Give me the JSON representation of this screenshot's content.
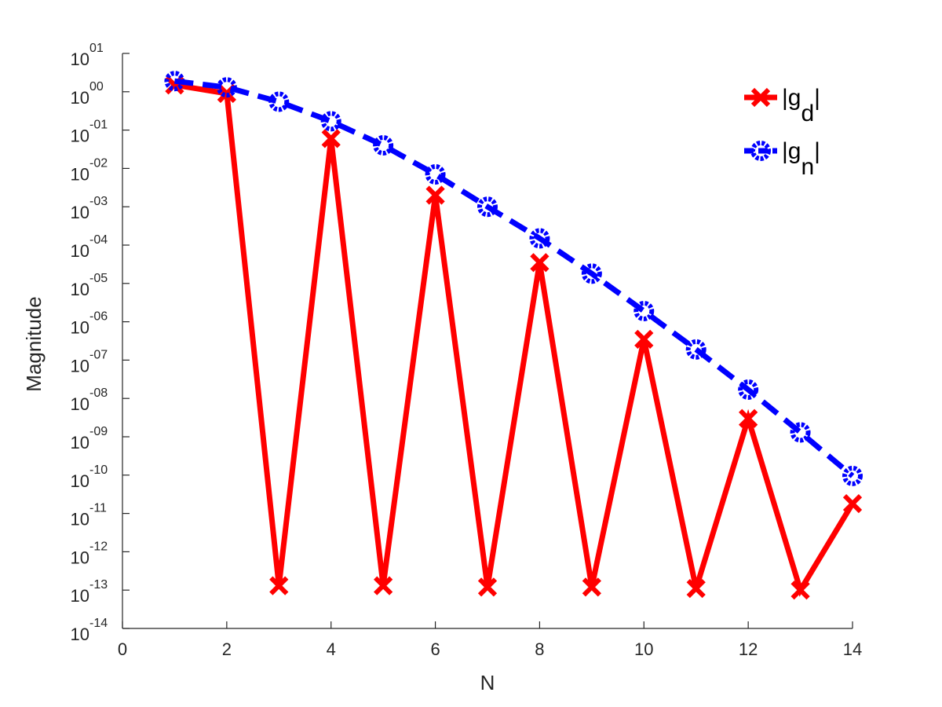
{
  "chart_data": {
    "type": "line",
    "xlabel": "N",
    "ylabel": "Magnitude",
    "xlim": [
      0,
      14
    ],
    "ylim_log10": [
      -14,
      1
    ],
    "yscale": "log",
    "grid": false,
    "legend_position": "top-right",
    "x_ticks": [
      "0",
      "2",
      "4",
      "6",
      "8",
      "10",
      "12",
      "14"
    ],
    "y_ticks": [
      {
        "base": "10",
        "exp": "-14"
      },
      {
        "base": "10",
        "exp": "-13"
      },
      {
        "base": "10",
        "exp": "-12"
      },
      {
        "base": "10",
        "exp": "-11"
      },
      {
        "base": "10",
        "exp": "-10"
      },
      {
        "base": "10",
        "exp": "-09"
      },
      {
        "base": "10",
        "exp": "-08"
      },
      {
        "base": "10",
        "exp": "-07"
      },
      {
        "base": "10",
        "exp": "-06"
      },
      {
        "base": "10",
        "exp": "-05"
      },
      {
        "base": "10",
        "exp": "-04"
      },
      {
        "base": "10",
        "exp": "-03"
      },
      {
        "base": "10",
        "exp": "-02"
      },
      {
        "base": "10",
        "exp": "-01"
      },
      {
        "base": "10",
        "exp": "00"
      },
      {
        "base": "10",
        "exp": "01"
      }
    ],
    "x": [
      1,
      2,
      3,
      4,
      5,
      6,
      7,
      8,
      9,
      10,
      11,
      12,
      13,
      14
    ],
    "series": [
      {
        "name": "|g_d|",
        "label_main": "|g",
        "label_sub": "d",
        "label_end": "|",
        "color": "#ff0000",
        "marker": "x",
        "linestyle": "solid",
        "values": [
          1.5,
          0.9,
          1.3e-13,
          0.06,
          1.3e-13,
          0.002,
          1.2e-13,
          3.5e-05,
          1.2e-13,
          3.5e-07,
          1.1e-13,
          3e-09,
          1e-13,
          1.8e-11
        ]
      },
      {
        "name": "|g_n|",
        "label_main": "|g",
        "label_sub": "n",
        "label_end": "|",
        "color": "#0000ff",
        "marker": "o",
        "linestyle": "dashed",
        "values": [
          1.9,
          1.3,
          0.55,
          0.17,
          0.04,
          0.007,
          0.001,
          0.00015,
          1.8e-05,
          1.9e-06,
          1.9e-07,
          1.7e-08,
          1.3e-09,
          9.5e-11
        ]
      }
    ]
  }
}
